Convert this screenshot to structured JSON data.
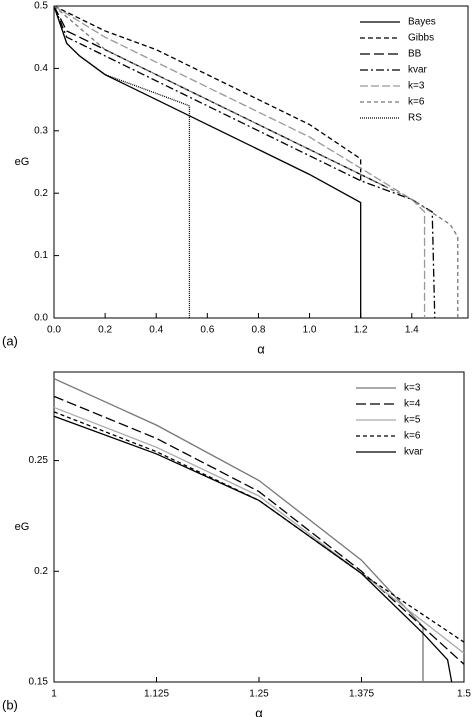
{
  "chart_data": [
    {
      "type": "line",
      "panel_label": "(a)",
      "xlabel": "α",
      "ylabel": "eG",
      "xlim": [
        0,
        1.62
      ],
      "ylim": [
        0,
        0.5
      ],
      "xticks": [
        {
          "value": 0,
          "label": "0.0"
        },
        0.2,
        0.4,
        0.6,
        0.8,
        {
          "value": 1,
          "label": "1.0"
        },
        1.2,
        1.4
      ],
      "yticks": [
        {
          "value": 0,
          "label": "0.0"
        },
        0.1,
        0.2,
        0.3,
        0.4,
        0.5
      ],
      "legend": "upper right",
      "series": [
        {
          "name": "Bayes",
          "color": "#000000",
          "dash": "none",
          "x": [
            0,
            0.05,
            0.1,
            0.2,
            0.4,
            0.6,
            0.8,
            1.0,
            1.2,
            1.2
          ],
          "values": [
            0.5,
            0.44,
            0.42,
            0.39,
            0.35,
            0.31,
            0.27,
            0.23,
            0.185,
            0
          ]
        },
        {
          "name": "Gibbs",
          "color": "#000000",
          "dash": "5,3",
          "x": [
            0,
            0.2,
            0.4,
            0.6,
            0.8,
            1.0,
            1.2,
            1.2
          ],
          "values": [
            0.5,
            0.46,
            0.43,
            0.39,
            0.35,
            0.31,
            0.255,
            0.22
          ]
        },
        {
          "name": "BB",
          "color": "#000000",
          "dash": "10,4",
          "x": [
            0,
            0.05,
            0.2,
            0.4,
            0.6,
            0.8,
            1.0,
            1.2,
            1.3
          ],
          "values": [
            0.5,
            0.46,
            0.43,
            0.39,
            0.35,
            0.31,
            0.27,
            0.23,
            0.21
          ]
        },
        {
          "name": "kvar",
          "color": "#000000",
          "dash": "8,3,2,3",
          "x": [
            0,
            0.05,
            0.2,
            0.4,
            0.6,
            0.8,
            1.0,
            1.2,
            1.4,
            1.48,
            1.49
          ],
          "values": [
            0.5,
            0.45,
            0.42,
            0.38,
            0.34,
            0.3,
            0.26,
            0.22,
            0.19,
            0.17,
            0
          ]
        },
        {
          "name": "k=3",
          "color": "#999999",
          "dash": "8,3",
          "x": [
            0,
            0.2,
            0.4,
            0.6,
            0.8,
            1.0,
            1.2,
            1.4,
            1.45,
            1.45
          ],
          "values": [
            0.5,
            0.45,
            0.41,
            0.37,
            0.33,
            0.29,
            0.24,
            0.19,
            0.17,
            0
          ]
        },
        {
          "name": "k=6",
          "color": "#777777",
          "dash": "4,3",
          "x": [
            0,
            0.2,
            0.4,
            0.6,
            0.8,
            1.0,
            1.2,
            1.4,
            1.55,
            1.58,
            1.58
          ],
          "values": [
            0.5,
            0.43,
            0.39,
            0.35,
            0.31,
            0.27,
            0.23,
            0.19,
            0.15,
            0.13,
            0
          ]
        },
        {
          "name": "RS",
          "color": "#000000",
          "dash": "1,1",
          "x": [
            0,
            0.05,
            0.1,
            0.2,
            0.4,
            0.53,
            0.53
          ],
          "values": [
            0.5,
            0.44,
            0.42,
            0.39,
            0.36,
            0.34,
            0
          ]
        }
      ]
    },
    {
      "type": "line",
      "panel_label": "(b)",
      "xlabel": "α",
      "ylabel": "eG",
      "xlim": [
        1,
        1.5
      ],
      "ylim": [
        0.15,
        0.29
      ],
      "xticks": [
        1,
        1.125,
        1.25,
        1.375,
        1.5
      ],
      "yticks": [
        0.15,
        0.2,
        0.25
      ],
      "legend": "upper right",
      "series": [
        {
          "name": "k=3",
          "color": "#777777",
          "dash": "none",
          "x": [
            1,
            1.125,
            1.25,
            1.375,
            1.45,
            1.45
          ],
          "values": [
            0.287,
            0.266,
            0.241,
            0.205,
            0.175,
            0.15
          ]
        },
        {
          "name": "k=4",
          "color": "#000000",
          "dash": "10,4",
          "x": [
            1,
            1.125,
            1.25,
            1.375,
            1.5
          ],
          "values": [
            0.279,
            0.26,
            0.236,
            0.2,
            0.158
          ]
        },
        {
          "name": "k=5",
          "color": "#aaaaaa",
          "dash": "none",
          "x": [
            1,
            1.125,
            1.25,
            1.375,
            1.5
          ],
          "values": [
            0.274,
            0.256,
            0.234,
            0.199,
            0.163
          ]
        },
        {
          "name": "k=6",
          "color": "#000000",
          "dash": "4,3",
          "x": [
            1,
            1.125,
            1.25,
            1.375,
            1.5
          ],
          "values": [
            0.272,
            0.254,
            0.232,
            0.199,
            0.168
          ]
        },
        {
          "name": "kvar",
          "color": "#000000",
          "dash": "none",
          "x": [
            1,
            1.125,
            1.25,
            1.375,
            1.45,
            1.48,
            1.485
          ],
          "values": [
            0.27,
            0.253,
            0.232,
            0.199,
            0.172,
            0.16,
            0.15
          ]
        }
      ]
    }
  ]
}
